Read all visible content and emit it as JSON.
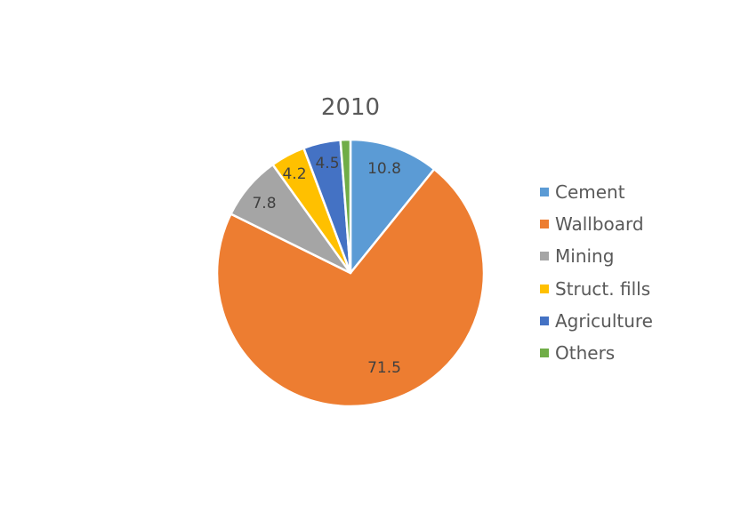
{
  "chart_data": {
    "type": "pie",
    "title": "2010",
    "categories": [
      "Cement",
      "Wallboard",
      "Mining",
      "Struct. fills",
      "Agriculture",
      "Others"
    ],
    "values": [
      10.8,
      71.5,
      7.8,
      4.2,
      4.5,
      1.2
    ],
    "data_labels": [
      "10.8",
      "71.5",
      "7.8",
      "4.2",
      "4.5",
      ""
    ],
    "colors": [
      "#5B9BD5",
      "#ED7D31",
      "#A5A5A5",
      "#FFC000",
      "#4472C4",
      "#70AD47"
    ],
    "start_angle": "12 o'clock, clockwise",
    "legend_position": "right"
  },
  "title": "2010",
  "legend": [
    {
      "label": "Cement",
      "color": "#5B9BD5"
    },
    {
      "label": "Wallboard",
      "color": "#ED7D31"
    },
    {
      "label": "Mining",
      "color": "#A5A5A5"
    },
    {
      "label": "Struct. fills",
      "color": "#FFC000"
    },
    {
      "label": "Agriculture",
      "color": "#4472C4"
    },
    {
      "label": "Others",
      "color": "#70AD47"
    }
  ]
}
